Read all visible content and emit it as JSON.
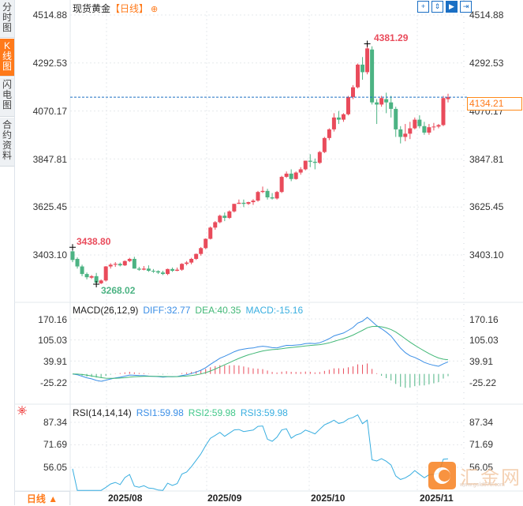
{
  "sidebar": {
    "tabs": [
      {
        "label": "分时图",
        "active": false
      },
      {
        "label": "K线图",
        "active": true
      },
      {
        "label": "闪电图",
        "active": false
      },
      {
        "label": "合约资料",
        "active": false
      }
    ]
  },
  "header": {
    "instrument": "现货黄金",
    "period": "【日线】",
    "add_icon": "plus-circle-icon"
  },
  "toolbar": {
    "buttons": [
      {
        "name": "crosshair-icon",
        "glyph": "+"
      },
      {
        "name": "range-zoom-icon",
        "glyph": "⇕"
      },
      {
        "name": "scroll-to-latest-icon",
        "glyph": "▶"
      },
      {
        "name": "exit-right-icon",
        "glyph": "⇥"
      }
    ]
  },
  "main_panel": {
    "y_ticks": [
      "4514.88",
      "4292.53",
      "4070.17",
      "3847.81",
      "3625.45",
      "3403.10"
    ],
    "current_price": "4134.21",
    "high_label": "4381.29",
    "low_label": "3268.02",
    "start_label": "3438.80"
  },
  "macd_panel": {
    "title": "MACD(26,12,9)",
    "diff": "DIFF:32.77",
    "dea": "DEA:40.35",
    "macd": "MACD:-15.16",
    "y_ticks": [
      "170.16",
      "105.03",
      "39.91",
      "-25.22"
    ]
  },
  "rsi_panel": {
    "title": "RSI(14,14,14)",
    "rsi1": "RSI1:59.98",
    "rsi2": "RSI2:59.98",
    "rsi3": "RSI3:59.98",
    "y_ticks": [
      "87.34",
      "71.69",
      "56.05"
    ]
  },
  "x_axis": {
    "labels": [
      "2025/08",
      "2025/09",
      "2025/10",
      "2025/11"
    ]
  },
  "footer": {
    "period_button": "日线 ▲"
  },
  "watermark": {
    "text": "汇金网",
    "url": "www.gold678.com"
  },
  "colors": {
    "up": "#e94b5b",
    "down": "#4cb383",
    "diff_line": "#3a8ee6",
    "dea_line": "#42b877",
    "rsi_line": "#38aee0",
    "accent": "#ff7a1a",
    "current_line": "#1a6fc4"
  },
  "chart_data": [
    {
      "type": "candlestick",
      "title": "现货黄金 【日线】",
      "ylim": [
        3268.02,
        4514.88
      ],
      "y_ticks": [
        4514.88,
        4292.53,
        4070.17,
        3847.81,
        3625.45,
        3403.1
      ],
      "x_labels": [
        "2025/08",
        "2025/09",
        "2025/10",
        "2025/11"
      ],
      "annotations": {
        "high": 4381.29,
        "low": 3268.02,
        "first": 3438.8,
        "last": 4134.21
      },
      "ohlc": [
        [
          3420,
          3438.8,
          3370,
          3380
        ],
        [
          3385,
          3392,
          3340,
          3350
        ],
        [
          3350,
          3358,
          3305,
          3315
        ],
        [
          3315,
          3322,
          3290,
          3300
        ],
        [
          3298,
          3310,
          3292,
          3305
        ],
        [
          3305,
          3320,
          3268.02,
          3275
        ],
        [
          3272,
          3290,
          3268,
          3285
        ],
        [
          3285,
          3352,
          3280,
          3350
        ],
        [
          3350,
          3365,
          3340,
          3358
        ],
        [
          3358,
          3370,
          3348,
          3362
        ],
        [
          3362,
          3368,
          3350,
          3355
        ],
        [
          3355,
          3378,
          3352,
          3375
        ],
        [
          3375,
          3390,
          3370,
          3385
        ],
        [
          3385,
          3395,
          3340,
          3340
        ],
        [
          3340,
          3348,
          3330,
          3335
        ],
        [
          3335,
          3352,
          3332,
          3340
        ],
        [
          3340,
          3355,
          3325,
          3330
        ],
        [
          3330,
          3338,
          3320,
          3328
        ],
        [
          3328,
          3332,
          3315,
          3322
        ],
        [
          3322,
          3330,
          3310,
          3315
        ],
        [
          3315,
          3340,
          3310,
          3338
        ],
        [
          3338,
          3345,
          3325,
          3330
        ],
        [
          3330,
          3345,
          3328,
          3335
        ],
        [
          3335,
          3365,
          3330,
          3362
        ],
        [
          3362,
          3375,
          3355,
          3368
        ],
        [
          3368,
          3390,
          3360,
          3385
        ],
        [
          3385,
          3410,
          3380,
          3408
        ],
        [
          3408,
          3440,
          3400,
          3435
        ],
        [
          3435,
          3480,
          3430,
          3478
        ],
        [
          3478,
          3535,
          3475,
          3530
        ],
        [
          3530,
          3560,
          3520,
          3555
        ],
        [
          3555,
          3590,
          3550,
          3585
        ],
        [
          3585,
          3600,
          3560,
          3575
        ],
        [
          3575,
          3610,
          3570,
          3605
        ],
        [
          3605,
          3640,
          3600,
          3640
        ],
        [
          3640,
          3660,
          3640,
          3645
        ],
        [
          3645,
          3660,
          3625,
          3640
        ],
        [
          3640,
          3650,
          3635,
          3648
        ],
        [
          3648,
          3662,
          3635,
          3655
        ],
        [
          3655,
          3700,
          3650,
          3695
        ],
        [
          3695,
          3720,
          3690,
          3700
        ],
        [
          3700,
          3710,
          3660,
          3670
        ],
        [
          3670,
          3690,
          3660,
          3665
        ],
        [
          3665,
          3700,
          3660,
          3695
        ],
        [
          3695,
          3770,
          3690,
          3765
        ],
        [
          3765,
          3790,
          3760,
          3780
        ],
        [
          3780,
          3800,
          3745,
          3755
        ],
        [
          3755,
          3790,
          3752,
          3785
        ],
        [
          3785,
          3810,
          3775,
          3800
        ],
        [
          3800,
          3840,
          3795,
          3840
        ],
        [
          3840,
          3870,
          3810,
          3835
        ],
        [
          3835,
          3850,
          3800,
          3830
        ],
        [
          3830,
          3885,
          3825,
          3880
        ],
        [
          3880,
          3950,
          3875,
          3945
        ],
        [
          3945,
          3990,
          3935,
          3985
        ],
        [
          3985,
          4060,
          3975,
          4040
        ],
        [
          4040,
          4070,
          4010,
          4030
        ],
        [
          4030,
          4060,
          4020,
          4055
        ],
        [
          4055,
          4140,
          4050,
          4135
        ],
        [
          4135,
          4190,
          4125,
          4180
        ],
        [
          4180,
          4290,
          4175,
          4285
        ],
        [
          4285,
          4320,
          4215,
          4250
        ],
        [
          4250,
          4381.29,
          4240,
          4360
        ],
        [
          4355,
          4370,
          4100,
          4110
        ],
        [
          4110,
          4125,
          4010,
          4100
        ],
        [
          4100,
          4140,
          4090,
          4130
        ],
        [
          4125,
          4155,
          4060,
          4110
        ],
        [
          4110,
          4140,
          4040,
          4080
        ],
        [
          4080,
          4090,
          3950,
          3985
        ],
        [
          3985,
          4000,
          3920,
          3950
        ],
        [
          3950,
          4010,
          3930,
          3965
        ],
        [
          3965,
          4020,
          3940,
          3990
        ],
        [
          3990,
          4040,
          3985,
          4030
        ],
        [
          4030,
          4050,
          3990,
          4000
        ],
        [
          4000,
          4020,
          3960,
          3970
        ],
        [
          3970,
          4010,
          3960,
          3995
        ],
        [
          3995,
          4015,
          3980,
          3998
        ],
        [
          3998,
          4010,
          3990,
          4005
        ],
        [
          4005,
          4140,
          4000,
          4130
        ],
        [
          4125,
          4150,
          4110,
          4134.21
        ]
      ]
    },
    {
      "type": "line",
      "title": "MACD(26,12,9)",
      "series": [
        {
          "name": "DIFF",
          "last": 32.77
        },
        {
          "name": "DEA",
          "last": 40.35
        },
        {
          "name": "MACD",
          "last": -15.16
        }
      ],
      "y_ticks": [
        170.16,
        105.03,
        39.91,
        -25.22
      ]
    },
    {
      "type": "line",
      "title": "RSI(14,14,14)",
      "series": [
        {
          "name": "RSI1",
          "last": 59.98
        },
        {
          "name": "RSI2",
          "last": 59.98
        },
        {
          "name": "RSI3",
          "last": 59.98
        }
      ],
      "y_ticks": [
        87.34,
        71.69,
        56.05
      ]
    }
  ]
}
